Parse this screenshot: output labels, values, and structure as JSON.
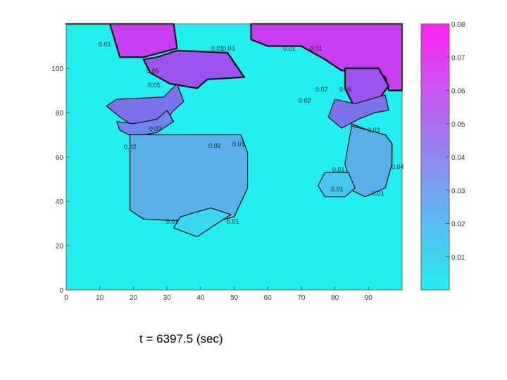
{
  "caption": "t = 6397.5 (sec)",
  "chart_data": {
    "type": "heatmap",
    "xlim": [
      0,
      100
    ],
    "ylim": [
      0,
      120
    ],
    "x_ticks": [
      0,
      10,
      20,
      30,
      40,
      50,
      60,
      70,
      80,
      90
    ],
    "y_ticks": [
      0,
      20,
      40,
      60,
      80,
      100
    ],
    "colorbar": {
      "range": [
        0,
        0.08
      ],
      "ticks": [
        "0.01",
        "0.02",
        "0.03",
        "0.04",
        "0.05",
        "0.06",
        "0.07",
        "0.08"
      ],
      "colormap": "cool",
      "color_low": "#22eef0",
      "color_high": "#ff22f2"
    },
    "regions": [
      {
        "value": 0.08,
        "color": "#c83cf2",
        "outline": [
          [
            0,
            120
          ],
          [
            13,
            120
          ],
          [
            16,
            105
          ],
          [
            23,
            105
          ],
          [
            33,
            109
          ],
          [
            32,
            120
          ]
        ]
      },
      {
        "value": 0.08,
        "color": "#c83cf2",
        "outline": [
          [
            55,
            120
          ],
          [
            100,
            120
          ],
          [
            100,
            90
          ],
          [
            96,
            90
          ],
          [
            95,
            96
          ],
          [
            92,
            99
          ],
          [
            82,
            99
          ],
          [
            77,
            104
          ],
          [
            70,
            110
          ],
          [
            60,
            110
          ],
          [
            55,
            113
          ]
        ]
      },
      {
        "value": 0.07,
        "color": "#9b55ee",
        "outline": [
          [
            33,
            108
          ],
          [
            48,
            107
          ],
          [
            53,
            96
          ],
          [
            42,
            95
          ],
          [
            39,
            91
          ],
          [
            31,
            93
          ],
          [
            25,
            98
          ],
          [
            23,
            104
          ],
          [
            27,
            105
          ]
        ]
      },
      {
        "value": 0.07,
        "color": "#9b55ee",
        "outline": [
          [
            83,
            100
          ],
          [
            93,
            100
          ],
          [
            96,
            92
          ],
          [
            91,
            82
          ],
          [
            86,
            82
          ],
          [
            83,
            91
          ]
        ]
      },
      {
        "value": 0.06,
        "color": "#7b72ec",
        "outline": [
          [
            15,
            86
          ],
          [
            29,
            87
          ],
          [
            33,
            93
          ],
          [
            35,
            85
          ],
          [
            32,
            81
          ],
          [
            29,
            75
          ],
          [
            20,
            74
          ],
          [
            16,
            78
          ],
          [
            12,
            83
          ]
        ]
      },
      {
        "value": 0.06,
        "color": "#7b72ec",
        "outline": [
          [
            80,
            86
          ],
          [
            86,
            84
          ],
          [
            95,
            88
          ],
          [
            96,
            81
          ],
          [
            92,
            80
          ],
          [
            87,
            77
          ],
          [
            82,
            73
          ],
          [
            78,
            78
          ]
        ]
      },
      {
        "value": 0.05,
        "color": "#6f84ea",
        "outline": [
          [
            15,
            76
          ],
          [
            20,
            75
          ],
          [
            27,
            77
          ],
          [
            30,
            81
          ],
          [
            32,
            76
          ],
          [
            27,
            71
          ],
          [
            20,
            69
          ],
          [
            16,
            72
          ]
        ]
      },
      {
        "value": 0.05,
        "color": "#6f84ea",
        "outline": [
          [
            85,
            75
          ],
          [
            90,
            72
          ],
          [
            94,
            70
          ],
          [
            97,
            66
          ],
          [
            97,
            60
          ],
          [
            94,
            58
          ],
          [
            91,
            63
          ],
          [
            88,
            68
          ],
          [
            85,
            72
          ]
        ]
      },
      {
        "value": 0.04,
        "color": "#5bb0ea",
        "outline": [
          [
            19,
            70
          ],
          [
            52,
            70
          ],
          [
            54,
            62
          ],
          [
            54,
            46
          ],
          [
            50,
            33
          ],
          [
            45,
            31
          ],
          [
            35,
            31
          ],
          [
            23,
            32
          ],
          [
            19,
            36
          ]
        ]
      },
      {
        "value": 0.04,
        "color": "#5bb0ea",
        "outline": [
          [
            85,
            74
          ],
          [
            90,
            72
          ],
          [
            95,
            70
          ],
          [
            97,
            66
          ],
          [
            97,
            57
          ],
          [
            95,
            46
          ],
          [
            89,
            42
          ],
          [
            85,
            45
          ],
          [
            83,
            57
          ],
          [
            84,
            66
          ]
        ]
      },
      {
        "value": 0.03,
        "color": "#48c6ee",
        "outline": [
          [
            77,
            53
          ],
          [
            84,
            53
          ],
          [
            86,
            46
          ],
          [
            83,
            42
          ],
          [
            77,
            42
          ],
          [
            75,
            47
          ]
        ]
      },
      {
        "value": 0.02,
        "color": "#3ad8ef",
        "outline": [
          [
            34,
            33
          ],
          [
            43,
            37
          ],
          [
            49,
            34
          ],
          [
            44,
            29
          ],
          [
            39,
            24
          ],
          [
            32,
            28
          ]
        ]
      }
    ],
    "contour_labels": [
      "0.01",
      "0.03",
      "0.01",
      "0.01",
      "0.01",
      "0.05",
      "0.05",
      "0.02",
      "0.01",
      "0.02",
      "0.03",
      "0.02",
      "0.01",
      "0.02",
      "0.03",
      "0.04",
      "0.01",
      "0.01",
      "0.01",
      "0.01",
      "0.01"
    ]
  }
}
